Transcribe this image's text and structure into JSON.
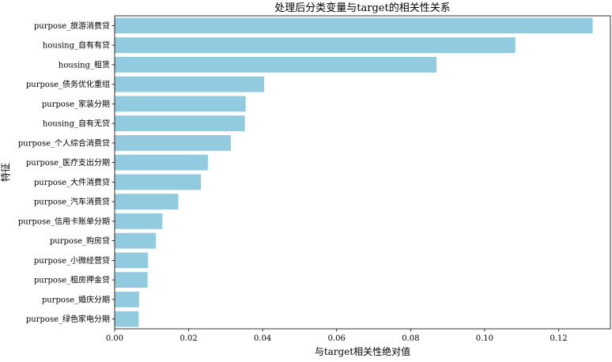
{
  "chart_data": {
    "type": "bar",
    "orientation": "horizontal",
    "title": "处理后分类变量与target的相关性关系",
    "xlabel": "与target相关性绝对值",
    "ylabel": "特征",
    "xlim": [
      0,
      0.134
    ],
    "xticks": [
      "0.00",
      "0.02",
      "0.04",
      "0.06",
      "0.08",
      "0.10",
      "0.12"
    ],
    "bar_color": "#92cbe0",
    "grid": false,
    "categories": [
      "purpose_旅游消费贷",
      "housing_自有有贷",
      "housing_租赁",
      "purpose_债务优化重组",
      "purpose_家装分期",
      "housing_自有无贷",
      "purpose_个人综合消费贷",
      "purpose_医疗支出分期",
      "purpose_大件消费贷",
      "purpose_汽车消费贷",
      "purpose_信用卡账单分期",
      "purpose_购房贷",
      "purpose_小微经营贷",
      "purpose_租房押金贷",
      "purpose_婚庆分期",
      "purpose_绿色家电分期"
    ],
    "values": [
      0.1292,
      0.1083,
      0.087,
      0.0404,
      0.0354,
      0.0352,
      0.0314,
      0.0252,
      0.0233,
      0.0172,
      0.0129,
      0.0111,
      0.009,
      0.0089,
      0.0066,
      0.0065
    ]
  }
}
